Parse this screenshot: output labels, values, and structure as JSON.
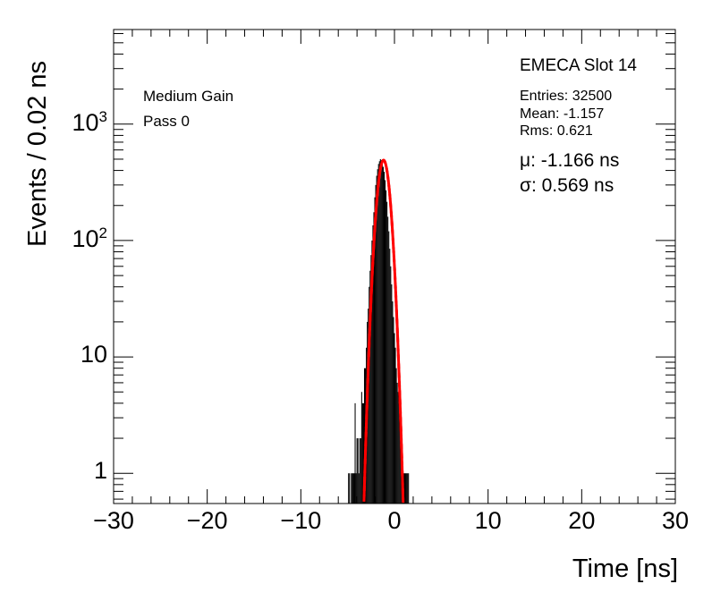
{
  "chart_data": {
    "type": "line",
    "title": "",
    "xlabel": "Time [ns]",
    "ylabel": "Events / 0.02 ns",
    "xlim": [
      -30,
      30
    ],
    "ylim": [
      0.55,
      6500
    ],
    "yscale": "log",
    "x_ticks": [
      -30,
      -20,
      -10,
      0,
      10,
      20,
      30
    ],
    "x_tick_labels": [
      "−30",
      "−20",
      "−10",
      "0",
      "10",
      "20",
      "30"
    ],
    "y_ticks": [
      1,
      10,
      100,
      1000
    ],
    "y_tick_labels": [
      "1",
      "10",
      "10^2",
      "10^3"
    ],
    "grid": false,
    "annotations": {
      "left": [
        "Medium Gain",
        "Pass 0"
      ],
      "title_box": "EMECA Slot 14",
      "stats": [
        "Entries: 32500",
        "Mean: -1.157",
        "Rms: 0.621"
      ],
      "fit": [
        "μ: -1.166 ns",
        "σ: 0.569 ns"
      ]
    },
    "histogram": {
      "name": "",
      "color": "#000000",
      "bin_width": 0.02,
      "x": [
        -4.9,
        -4.8,
        -4.7,
        -4.6,
        -4.5,
        -4.4,
        -4.3,
        -4.2,
        -4.1,
        -4.0,
        -3.9,
        -3.8,
        -3.7,
        -3.6,
        -3.5,
        -3.4,
        -3.3,
        -3.2,
        -3.1,
        -3.0,
        -2.9,
        -2.8,
        -2.7,
        -2.6,
        -2.5,
        -2.4,
        -2.3,
        -2.2,
        -2.1,
        -2.0,
        -1.9,
        -1.8,
        -1.7,
        -1.6,
        -1.5,
        -1.4,
        -1.3,
        -1.2,
        -1.1,
        -1.0,
        -0.9,
        -0.8,
        -0.7,
        -0.6,
        -0.5,
        -0.4,
        -0.3,
        -0.2,
        -0.1,
        0.0,
        0.1,
        0.2,
        0.3,
        0.4,
        0.5,
        0.6,
        0.7,
        0.8,
        0.9,
        1.0,
        1.1,
        1.2,
        1.3,
        1.4,
        1.5
      ],
      "values": [
        1,
        1,
        0,
        1,
        1,
        1,
        1,
        4,
        1,
        2,
        2,
        1,
        2,
        2,
        5,
        4,
        4,
        8,
        8,
        12,
        20,
        26,
        40,
        55,
        75,
        100,
        135,
        175,
        235,
        300,
        360,
        410,
        455,
        480,
        500,
        490,
        470,
        430,
        390,
        330,
        270,
        215,
        160,
        120,
        85,
        60,
        42,
        30,
        22,
        16,
        12,
        8,
        6,
        5,
        4,
        3,
        2,
        1,
        1,
        1,
        1,
        1,
        1,
        1,
        1
      ]
    },
    "fit_curve": {
      "name": "",
      "color": "#ff0000",
      "mean": -1.166,
      "sigma": 0.569,
      "amplitude": 490,
      "fit_range": [
        -3.3,
        0.95
      ]
    }
  }
}
